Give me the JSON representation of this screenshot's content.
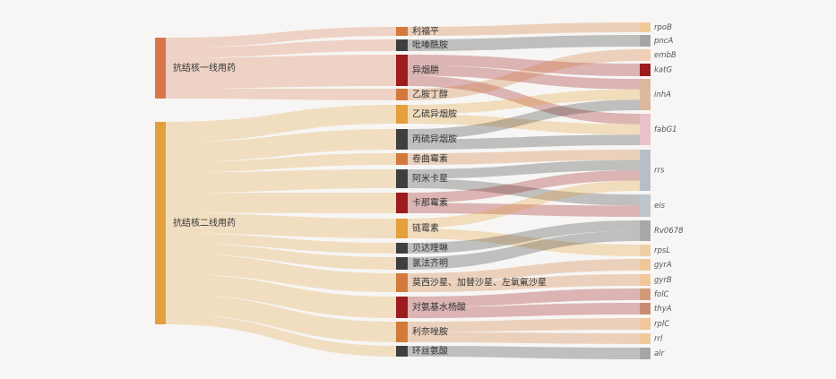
{
  "left_nodes": [
    {
      "id": "first_line",
      "label": "抗结核一线用药",
      "color": "#d9754a"
    },
    {
      "id": "second_line",
      "label": "抗结核二线用药",
      "color": "#e3a03d"
    }
  ],
  "mid_nodes": [
    {
      "id": "rifapentine",
      "label": "利福平",
      "color": "#d27a3c",
      "group": "first_line"
    },
    {
      "id": "pyrazinamide",
      "label": "吡嗪酰胺",
      "color": "#3f3f3f",
      "group": "first_line"
    },
    {
      "id": "isoniazid",
      "label": "异烟肼",
      "color": "#9c1c1f",
      "group": "first_line"
    },
    {
      "id": "ethambutol",
      "label": "乙胺丁醇",
      "color": "#d27a3c",
      "group": "first_line"
    },
    {
      "id": "ethionamide",
      "label": "乙硫异烟胺",
      "color": "#e3a03d",
      "group": "second_line"
    },
    {
      "id": "prothionamide",
      "label": "丙硫异烟胺",
      "color": "#3f3f3f",
      "group": "second_line"
    },
    {
      "id": "capreomycin",
      "label": "卷曲霉素",
      "color": "#d27a3c",
      "group": "second_line"
    },
    {
      "id": "amikacin",
      "label": "阿米卡星",
      "color": "#3f3f3f",
      "group": "second_line"
    },
    {
      "id": "kanamycin",
      "label": "卡那霉素",
      "color": "#9c1c1f",
      "group": "second_line"
    },
    {
      "id": "streptomycin",
      "label": "链霉素",
      "color": "#e3a03d",
      "group": "second_line"
    },
    {
      "id": "bedaquiline",
      "label": "贝达喹啉",
      "color": "#3f3f3f",
      "group": "second_line"
    },
    {
      "id": "clofazimine",
      "label": "氯法齐明",
      "color": "#3f3f3f",
      "group": "second_line"
    },
    {
      "id": "fluoroquinolones",
      "label": "莫西沙星、加替沙星、左氧氟沙星",
      "color": "#d27a3c",
      "group": "second_line"
    },
    {
      "id": "pas",
      "label": "对氨基水杨酸",
      "color": "#9c1c1f",
      "group": "second_line"
    },
    {
      "id": "linezolid",
      "label": "利奈唑胺",
      "color": "#d27a3c",
      "group": "second_line"
    },
    {
      "id": "cycloserine",
      "label": "环丝氨酸",
      "color": "#3f3f3f",
      "group": "second_line"
    }
  ],
  "right_nodes": [
    {
      "id": "rpoB",
      "label": "rpoB",
      "color": "#f0c99a"
    },
    {
      "id": "pncA",
      "label": "pncA",
      "color": "#a5a5a5"
    },
    {
      "id": "embB",
      "label": "embB",
      "color": "#f2cfb4"
    },
    {
      "id": "katG",
      "label": "katG",
      "color": "#9c1c1f"
    },
    {
      "id": "inhA",
      "label": "inhA",
      "color": "#dbb8a0"
    },
    {
      "id": "fabG1",
      "label": "fabG1",
      "color": "#e8c3c7"
    },
    {
      "id": "rrs",
      "label": "rrs",
      "color": "#b6bec8"
    },
    {
      "id": "eis",
      "label": "eis",
      "color": "#bcc4cc"
    },
    {
      "id": "Rv0678",
      "label": "Rv0678",
      "color": "#a8a8a8"
    },
    {
      "id": "rpsL",
      "label": "rpsL",
      "color": "#f0cfa8"
    },
    {
      "id": "gyrA",
      "label": "gyrA",
      "color": "#f0c79a"
    },
    {
      "id": "gyrB",
      "label": "gyrB",
      "color": "#f0c79a"
    },
    {
      "id": "folC",
      "label": "folC",
      "color": "#d39a7a"
    },
    {
      "id": "thyA",
      "label": "thyA",
      "color": "#c98a74"
    },
    {
      "id": "rplC",
      "label": "rplC",
      "color": "#f0c79a"
    },
    {
      "id": "rrl",
      "label": "rrl",
      "color": "#f0c99a"
    },
    {
      "id": "alr",
      "label": "alr",
      "color": "#a5a5a5"
    }
  ],
  "links_left": [
    {
      "source": "first_line",
      "target": "rifapentine",
      "value": 1
    },
    {
      "source": "first_line",
      "target": "pyrazinamide",
      "value": 1
    },
    {
      "source": "first_line",
      "target": "isoniazid",
      "value": 3
    },
    {
      "source": "first_line",
      "target": "ethambutol",
      "value": 1
    },
    {
      "source": "second_line",
      "target": "ethionamide",
      "value": 2
    },
    {
      "source": "second_line",
      "target": "prothionamide",
      "value": 2
    },
    {
      "source": "second_line",
      "target": "capreomycin",
      "value": 1
    },
    {
      "source": "second_line",
      "target": "amikacin",
      "value": 2
    },
    {
      "source": "second_line",
      "target": "kanamycin",
      "value": 2
    },
    {
      "source": "second_line",
      "target": "streptomycin",
      "value": 2
    },
    {
      "source": "second_line",
      "target": "bedaquiline",
      "value": 1
    },
    {
      "source": "second_line",
      "target": "clofazimine",
      "value": 1
    },
    {
      "source": "second_line",
      "target": "fluoroquinolones",
      "value": 2
    },
    {
      "source": "second_line",
      "target": "pas",
      "value": 2
    },
    {
      "source": "second_line",
      "target": "linezolid",
      "value": 2
    },
    {
      "source": "second_line",
      "target": "cycloserine",
      "value": 1
    }
  ],
  "links_right": [
    {
      "source": "rifapentine",
      "target": "rpoB",
      "value": 1
    },
    {
      "source": "pyrazinamide",
      "target": "pncA",
      "value": 1
    },
    {
      "source": "isoniazid",
      "target": "katG",
      "value": 1
    },
    {
      "source": "isoniazid",
      "target": "inhA",
      "value": 1
    },
    {
      "source": "isoniazid",
      "target": "fabG1",
      "value": 1
    },
    {
      "source": "ethambutol",
      "target": "embB",
      "value": 1
    },
    {
      "source": "ethionamide",
      "target": "inhA",
      "value": 1
    },
    {
      "source": "ethionamide",
      "target": "fabG1",
      "value": 1
    },
    {
      "source": "prothionamide",
      "target": "inhA",
      "value": 1
    },
    {
      "source": "prothionamide",
      "target": "fabG1",
      "value": 1
    },
    {
      "source": "capreomycin",
      "target": "rrs",
      "value": 1
    },
    {
      "source": "amikacin",
      "target": "rrs",
      "value": 1
    },
    {
      "source": "amikacin",
      "target": "eis",
      "value": 1
    },
    {
      "source": "kanamycin",
      "target": "rrs",
      "value": 1
    },
    {
      "source": "kanamycin",
      "target": "eis",
      "value": 1
    },
    {
      "source": "streptomycin",
      "target": "rrs",
      "value": 1
    },
    {
      "source": "streptomycin",
      "target": "rpsL",
      "value": 1
    },
    {
      "source": "bedaquiline",
      "target": "Rv0678",
      "value": 1
    },
    {
      "source": "clofazimine",
      "target": "Rv0678",
      "value": 1
    },
    {
      "source": "fluoroquinolones",
      "target": "gyrA",
      "value": 1
    },
    {
      "source": "fluoroquinolones",
      "target": "gyrB",
      "value": 1
    },
    {
      "source": "pas",
      "target": "folC",
      "value": 1
    },
    {
      "source": "pas",
      "target": "thyA",
      "value": 1
    },
    {
      "source": "linezolid",
      "target": "rplC",
      "value": 1
    },
    {
      "source": "linezolid",
      "target": "rrl",
      "value": 1
    },
    {
      "source": "cycloserine",
      "target": "alr",
      "value": 1
    }
  ]
}
